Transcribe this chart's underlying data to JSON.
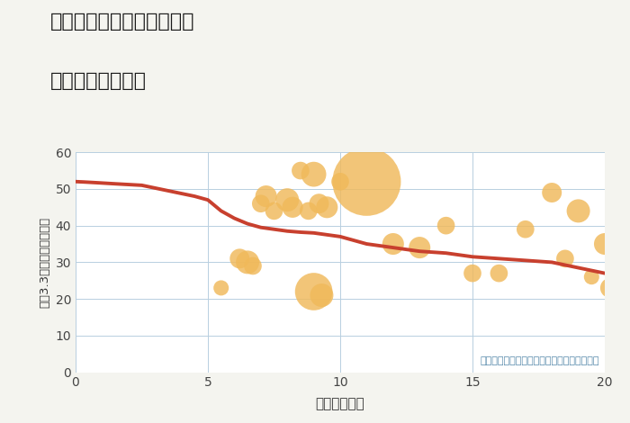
{
  "title_line1": "奈良県奈良市学園赤松町の",
  "title_line2": "駅距離別土地価格",
  "xlabel": "駅距離（分）",
  "ylabel": "坪（3.3㎡）単価（万円）",
  "annotation": "円の大きさは、取引のあった物件面積を示す",
  "background_color": "#f4f4ef",
  "plot_bg_color": "#ffffff",
  "xlim": [
    0,
    20
  ],
  "ylim": [
    0,
    60
  ],
  "xticks": [
    0,
    5,
    10,
    15,
    20
  ],
  "yticks": [
    0,
    10,
    20,
    30,
    40,
    50,
    60
  ],
  "bubble_color": "#f0b95a",
  "bubble_alpha": 0.82,
  "line_color": "#c8402e",
  "line_width": 2.8,
  "scatter_x": [
    7,
    7.2,
    7.5,
    8,
    8.2,
    8.8,
    9.2,
    9.5,
    10,
    11,
    8.5,
    9.0,
    6.2,
    6.5,
    6.7,
    9.0,
    9.3,
    12,
    13,
    14,
    15,
    16,
    17,
    18,
    18.5,
    19,
    19.5,
    20,
    20.2,
    5.5
  ],
  "scatter_y": [
    46,
    48,
    44,
    47,
    45,
    44,
    46,
    45,
    52,
    52,
    55,
    54,
    31,
    30,
    29,
    22,
    21,
    35,
    34,
    40,
    27,
    27,
    39,
    49,
    31,
    44,
    26,
    35,
    23,
    23
  ],
  "scatter_size": [
    200,
    300,
    200,
    350,
    280,
    200,
    250,
    300,
    200,
    3000,
    200,
    400,
    250,
    350,
    200,
    900,
    350,
    300,
    300,
    200,
    200,
    200,
    200,
    250,
    200,
    350,
    150,
    300,
    250,
    150
  ],
  "trend_x": [
    0,
    0.3,
    0.8,
    1.5,
    2.5,
    3.5,
    4.5,
    5.0,
    5.5,
    6.0,
    6.5,
    7.0,
    7.5,
    8.0,
    8.5,
    9.0,
    10,
    11,
    12,
    13,
    14,
    15,
    16,
    17,
    18,
    19,
    20
  ],
  "trend_y": [
    52,
    51.9,
    51.7,
    51.4,
    51.0,
    49.5,
    48.0,
    47.0,
    44.0,
    42.0,
    40.5,
    39.5,
    39.0,
    38.5,
    38.2,
    38.0,
    37.0,
    35.0,
    34.0,
    33.0,
    32.5,
    31.5,
    31.0,
    30.5,
    30.0,
    28.5,
    27.0
  ]
}
